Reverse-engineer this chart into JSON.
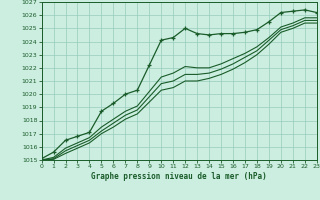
{
  "title": "Graphe pression niveau de la mer (hPa)",
  "background_color": "#cceee0",
  "grid_color": "#99ccbb",
  "line_color": "#1a5c2a",
  "xlim": [
    0,
    23
  ],
  "ylim": [
    1015,
    1027
  ],
  "xticks": [
    0,
    1,
    2,
    3,
    4,
    5,
    6,
    7,
    8,
    9,
    10,
    11,
    12,
    13,
    14,
    15,
    16,
    17,
    18,
    19,
    20,
    21,
    22,
    23
  ],
  "yticks": [
    1015,
    1016,
    1017,
    1018,
    1019,
    1020,
    1021,
    1022,
    1023,
    1024,
    1025,
    1026,
    1027
  ],
  "series1_x": [
    0,
    1,
    2,
    3,
    4,
    5,
    6,
    7,
    8,
    9,
    10,
    11,
    12,
    13,
    14,
    15,
    16,
    17,
    18,
    19,
    20,
    21,
    22,
    23
  ],
  "series1_y": [
    1015.1,
    1015.6,
    1016.5,
    1016.8,
    1017.1,
    1018.7,
    1019.3,
    1020.0,
    1020.3,
    1022.2,
    1024.1,
    1024.3,
    1025.0,
    1024.6,
    1024.5,
    1024.6,
    1024.6,
    1024.7,
    1024.9,
    1025.5,
    1026.2,
    1026.3,
    1026.4,
    1026.2
  ],
  "series2_x": [
    0,
    1,
    2,
    3,
    4,
    5,
    6,
    7,
    8,
    9,
    10,
    11,
    12,
    13,
    14,
    15,
    16,
    17,
    18,
    19,
    20,
    21,
    22,
    23
  ],
  "series2_y": [
    1015.0,
    1015.2,
    1015.9,
    1016.3,
    1016.7,
    1017.5,
    1018.1,
    1018.7,
    1019.1,
    1020.2,
    1021.3,
    1021.6,
    1022.1,
    1022.0,
    1022.0,
    1022.3,
    1022.7,
    1023.1,
    1023.6,
    1024.3,
    1025.1,
    1025.4,
    1025.8,
    1025.8
  ],
  "series3_x": [
    0,
    1,
    2,
    3,
    4,
    5,
    6,
    7,
    8,
    9,
    10,
    11,
    12,
    13,
    14,
    15,
    16,
    17,
    18,
    19,
    20,
    21,
    22,
    23
  ],
  "series3_y": [
    1015.0,
    1015.1,
    1015.7,
    1016.1,
    1016.5,
    1017.2,
    1017.8,
    1018.4,
    1018.8,
    1019.8,
    1020.8,
    1021.0,
    1021.5,
    1021.5,
    1021.6,
    1021.9,
    1022.3,
    1022.8,
    1023.3,
    1024.1,
    1024.9,
    1025.2,
    1025.6,
    1025.6
  ],
  "series4_x": [
    0,
    1,
    2,
    3,
    4,
    5,
    6,
    7,
    8,
    9,
    10,
    11,
    12,
    13,
    14,
    15,
    16,
    17,
    18,
    19,
    20,
    21,
    22,
    23
  ],
  "series4_y": [
    1015.0,
    1015.05,
    1015.5,
    1015.9,
    1016.3,
    1017.0,
    1017.5,
    1018.1,
    1018.5,
    1019.4,
    1020.3,
    1020.5,
    1021.0,
    1021.0,
    1021.2,
    1021.5,
    1021.9,
    1022.4,
    1023.0,
    1023.8,
    1024.7,
    1025.0,
    1025.4,
    1025.4
  ]
}
